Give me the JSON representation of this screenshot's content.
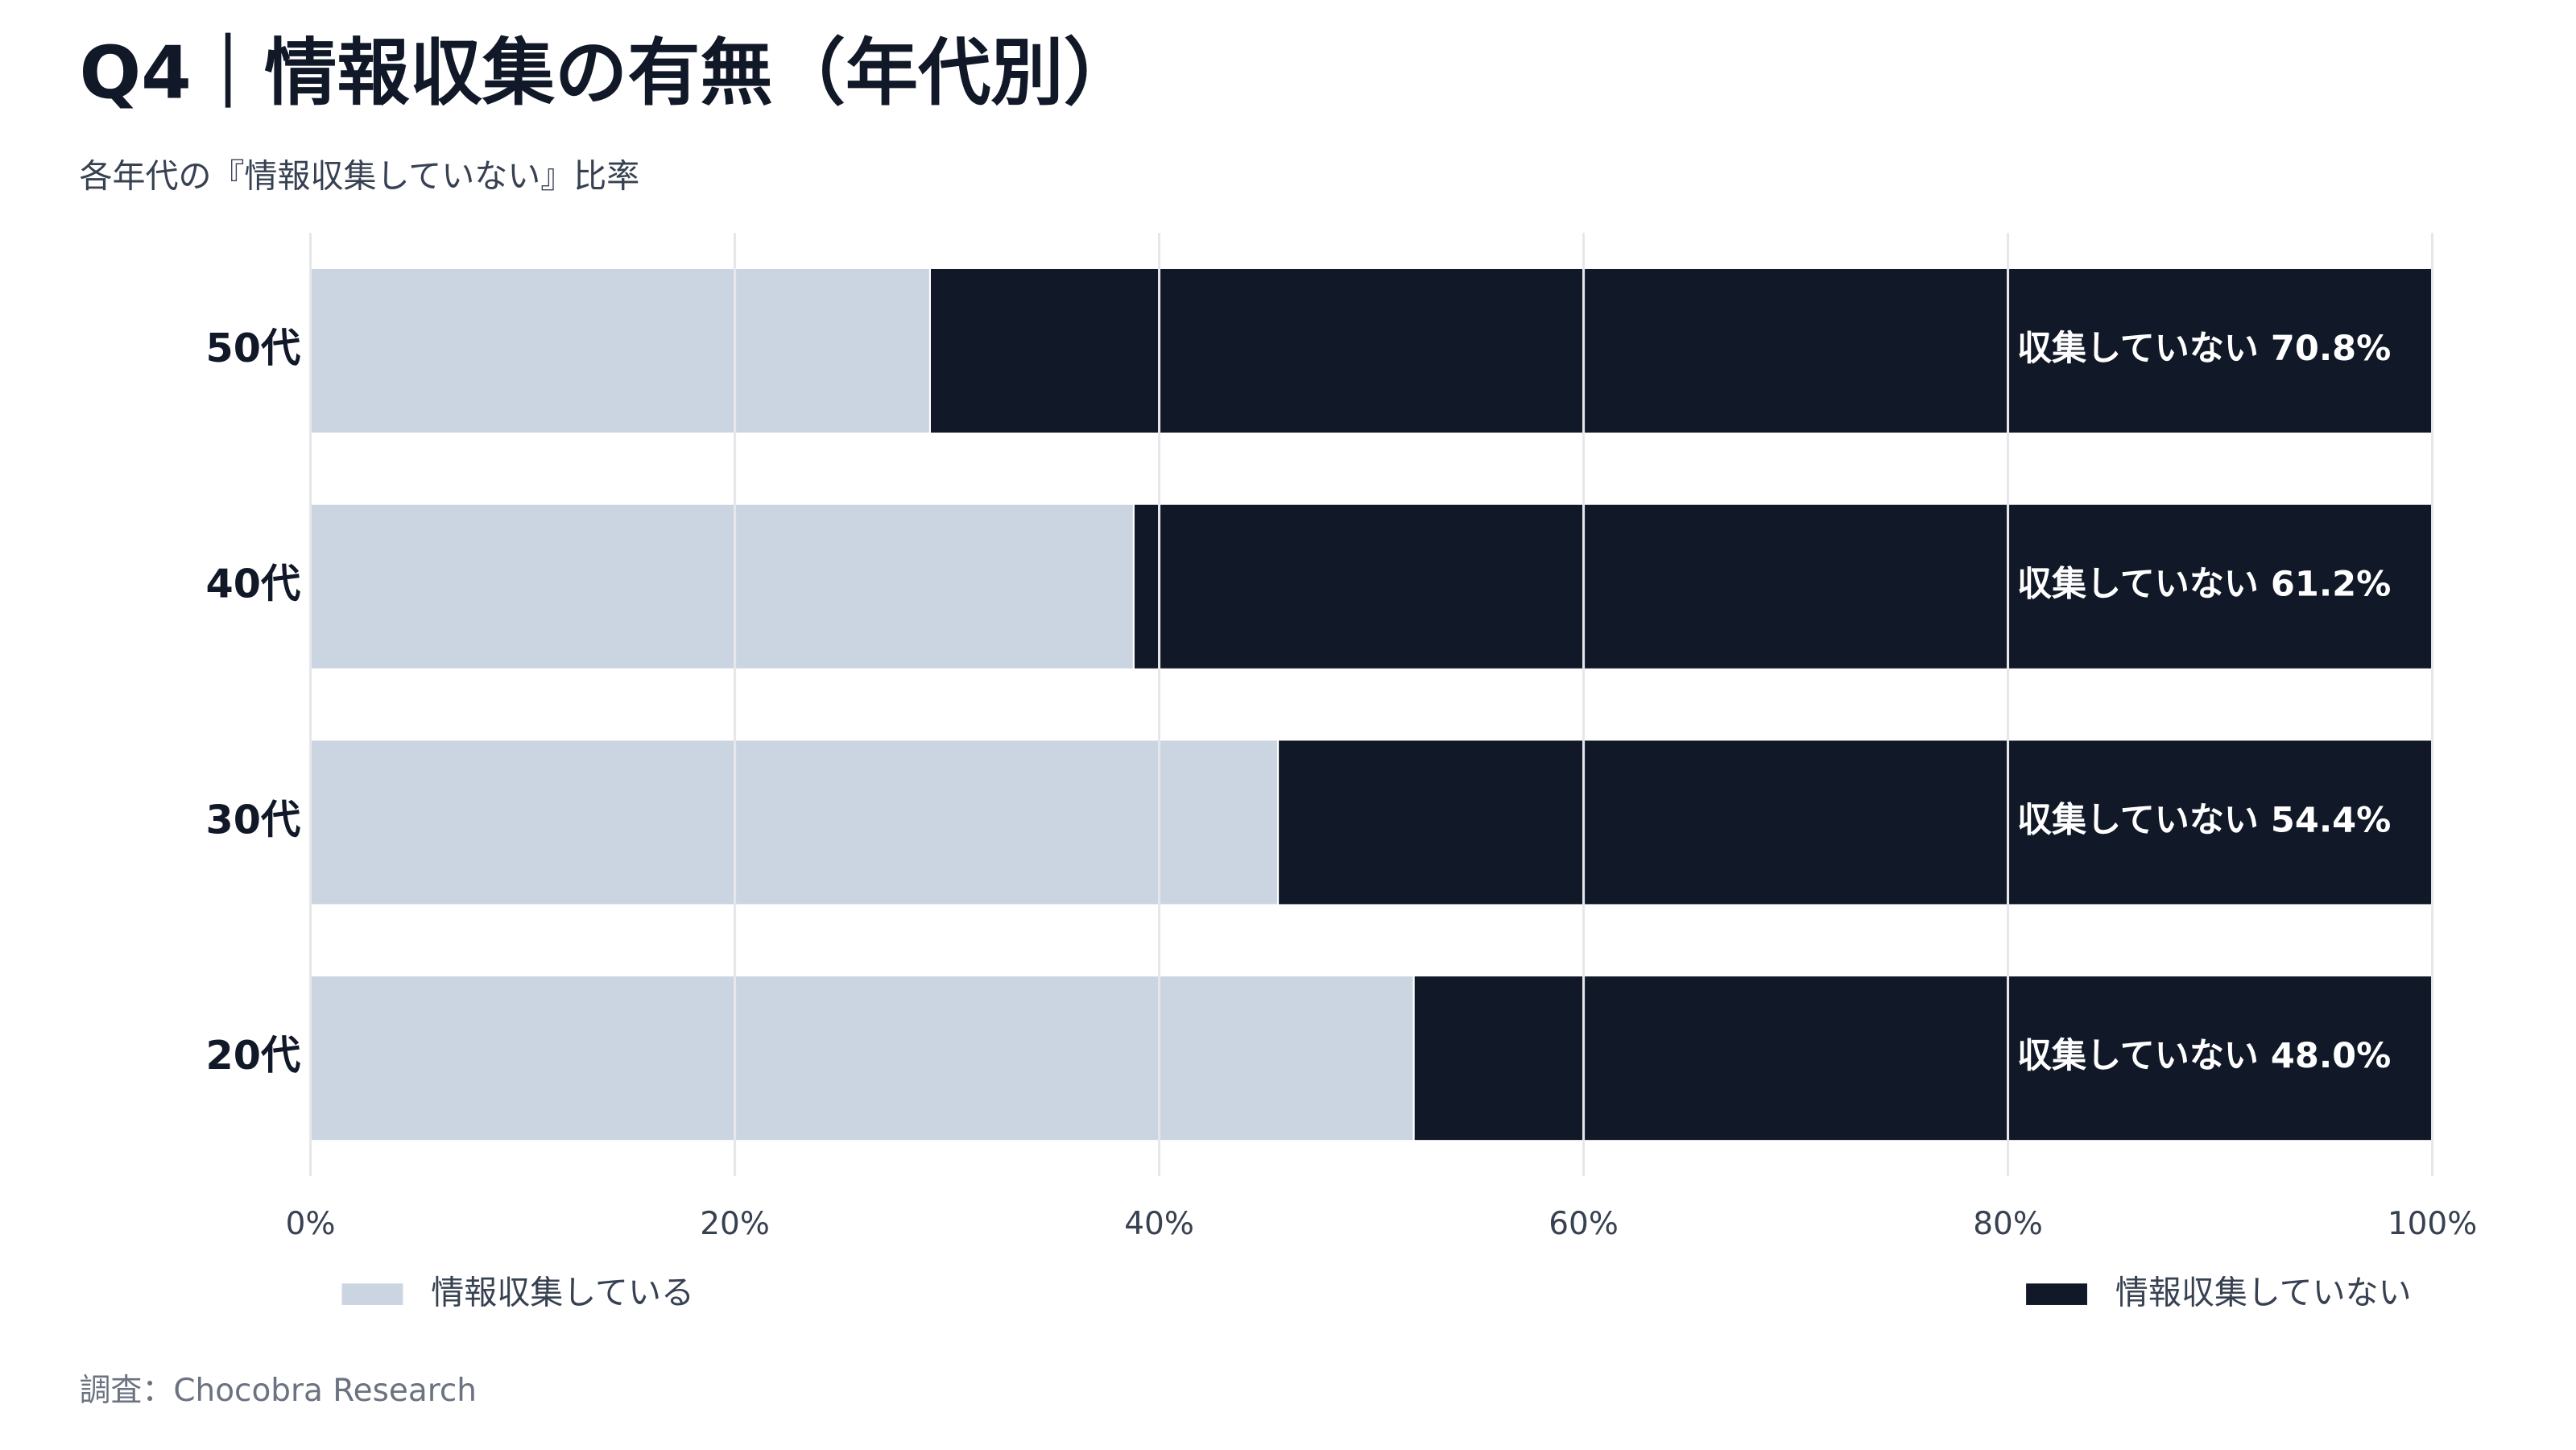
{
  "chart_data": {
    "type": "stacked-barh",
    "title": "Q4｜情報収集の有無（年代別）",
    "subtitle": "各年代の『情報収集していない』比率",
    "source": "調査：Chocobra Research",
    "categories": [
      "50代",
      "40代",
      "30代",
      "20代"
    ],
    "series": [
      {
        "name": "情報収集している",
        "color": "#cbd5e1",
        "values": [
          29.2,
          38.8,
          45.6,
          52.0
        ]
      },
      {
        "name": "情報収集していない",
        "color": "#111827",
        "values": [
          70.8,
          61.2,
          54.4,
          48.0
        ],
        "value_labels": [
          "収集していない 70.8%",
          "収集していない 61.2%",
          "収集していない 54.4%",
          "収集していない 48.0%"
        ]
      }
    ],
    "xlim": [
      0,
      100
    ],
    "xticks": [
      {
        "value": 0,
        "label": "0%"
      },
      {
        "value": 20,
        "label": "20%"
      },
      {
        "value": 40,
        "label": "40%"
      },
      {
        "value": 60,
        "label": "60%"
      },
      {
        "value": 80,
        "label": "80%"
      },
      {
        "value": 100,
        "label": "100%"
      }
    ],
    "grid": true
  }
}
